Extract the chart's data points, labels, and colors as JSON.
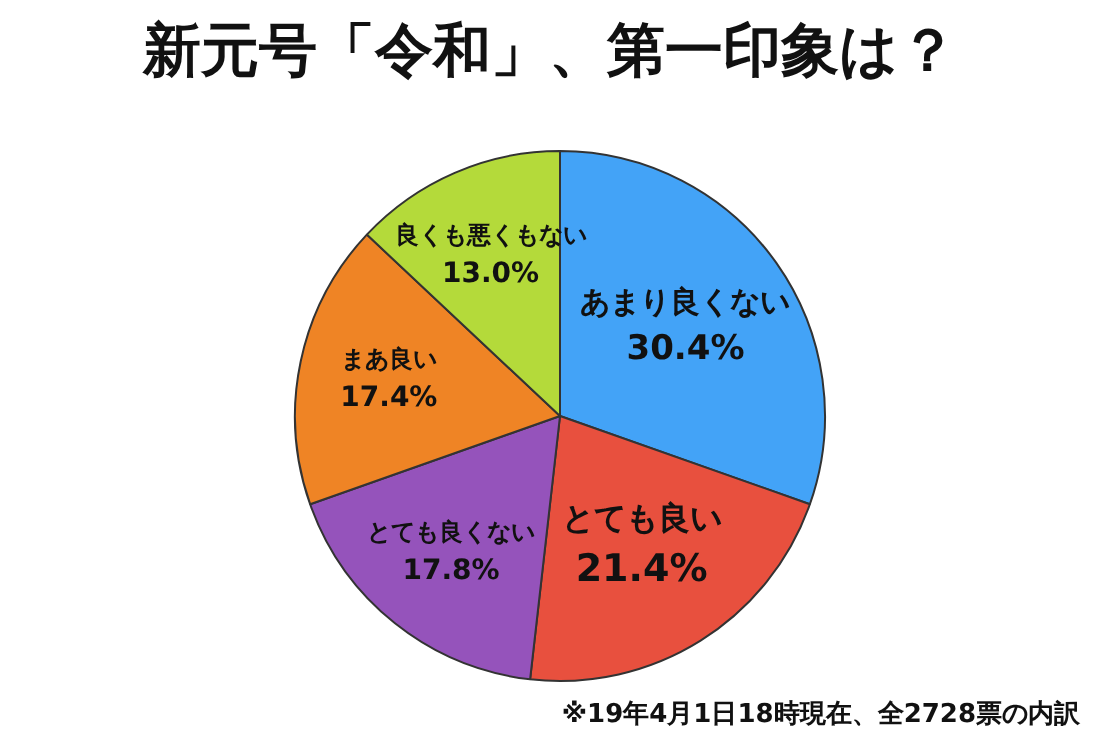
{
  "chart_data": {
    "type": "pie",
    "title": "新元号「令和」、第一印象は？",
    "categories": [
      "あまり良くない",
      "とても良い",
      "とても良くない",
      "まあ良い",
      "良くも悪くもない"
    ],
    "values": [
      30.4,
      21.4,
      17.8,
      17.4,
      13.0
    ],
    "value_labels": [
      "30.4%",
      "21.4%",
      "17.8%",
      "17.4%",
      "13.0%"
    ],
    "colors": [
      "#43a3f7",
      "#e8503e",
      "#9553bb",
      "#ef8425",
      "#b4da3a"
    ],
    "annotations": [
      "※19年4月1日18時現在、全2728票の内訳"
    ]
  }
}
